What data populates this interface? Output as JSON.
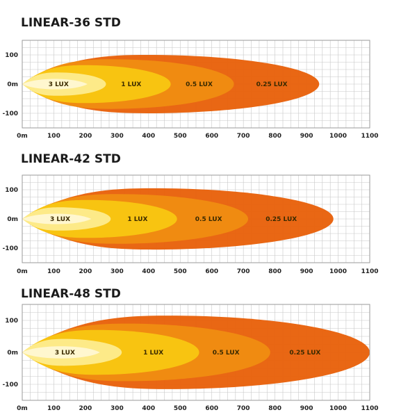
{
  "colors": {
    "grid": "#c8c8c8",
    "frame": "#9a9a9a",
    "zone_0_25": "#e8620c",
    "zone_0_5": "#f08c12",
    "zone_1": "#f8c612",
    "zone_3": "#fdeb8c",
    "zone_3_core": "#fff7cf"
  },
  "chart_data": [
    {
      "type": "area",
      "title": "LINEAR-36 STD",
      "x_ticks": [
        "0m",
        "100",
        "200",
        "300",
        "400",
        "500",
        "600",
        "700",
        "800",
        "900",
        "1000",
        "1100"
      ],
      "y_ticks": [
        "100",
        "0m",
        "-100"
      ],
      "xlim": [
        0,
        1100
      ],
      "ylim": [
        -150,
        150
      ],
      "zones": [
        {
          "label": "0.25 LUX",
          "reach": 940,
          "half_width": 100,
          "label_x": 790
        },
        {
          "label": "0.5 LUX",
          "reach": 670,
          "half_width": 85,
          "label_x": 560
        },
        {
          "label": "1 LUX",
          "reach": 470,
          "half_width": 65,
          "label_x": 345
        },
        {
          "label": "3 LUX",
          "reach": 265,
          "half_width": 40,
          "label_x": 115
        }
      ]
    },
    {
      "type": "area",
      "title": "LINEAR-42 STD",
      "x_ticks": [
        "0m",
        "100",
        "200",
        "300",
        "400",
        "500",
        "600",
        "700",
        "800",
        "900",
        "1000",
        "1100"
      ],
      "y_ticks": [
        "100",
        "0m",
        "-100"
      ],
      "xlim": [
        0,
        1100
      ],
      "ylim": [
        -150,
        150
      ],
      "zones": [
        {
          "label": "0.25 LUX",
          "reach": 985,
          "half_width": 105,
          "label_x": 820
        },
        {
          "label": "0.5 LUX",
          "reach": 715,
          "half_width": 85,
          "label_x": 590
        },
        {
          "label": "1 LUX",
          "reach": 490,
          "half_width": 65,
          "label_x": 365
        },
        {
          "label": "3 LUX",
          "reach": 280,
          "half_width": 40,
          "label_x": 120
        }
      ]
    },
    {
      "type": "area",
      "title": "LINEAR-48 STD",
      "x_ticks": [
        "0m",
        "100",
        "200",
        "300",
        "400",
        "500",
        "600",
        "700",
        "800",
        "900",
        "1000",
        "1100"
      ],
      "y_ticks": [
        "100",
        "0m",
        "-100"
      ],
      "xlim": [
        0,
        1100
      ],
      "ylim": [
        -150,
        150
      ],
      "zones": [
        {
          "label": "0.25 LUX",
          "reach": 1100,
          "half_width": 115,
          "label_x": 895
        },
        {
          "label": "0.5 LUX",
          "reach": 785,
          "half_width": 90,
          "label_x": 645
        },
        {
          "label": "1 LUX",
          "reach": 560,
          "half_width": 70,
          "label_x": 415
        },
        {
          "label": "3 LUX",
          "reach": 315,
          "half_width": 42,
          "label_x": 135
        }
      ]
    }
  ]
}
